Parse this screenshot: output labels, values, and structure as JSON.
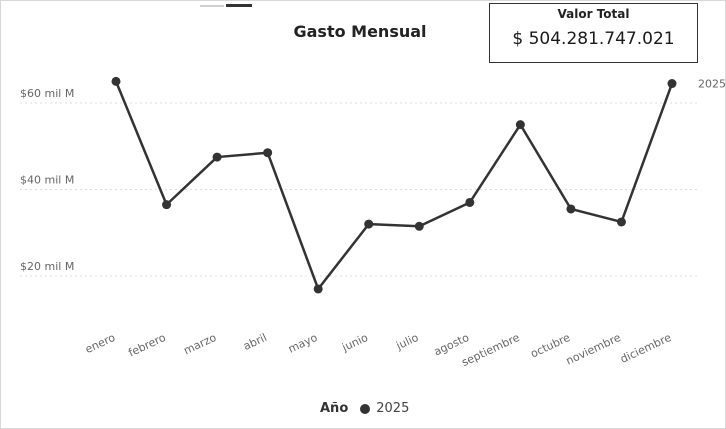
{
  "title": "Gasto Mensual",
  "card": {
    "title": "Valor Total",
    "value": "$ 504.281.747.021"
  },
  "legend": {
    "title": "Año",
    "entries": [
      "2025"
    ]
  },
  "colors": {
    "series": "#333333",
    "grid": "#dddddd",
    "axis_text": "#666666"
  },
  "chart_data": {
    "type": "line",
    "title": "Gasto Mensual",
    "xlabel": "",
    "ylabel": "",
    "categories": [
      "enero",
      "febrero",
      "marzo",
      "abril",
      "mayo",
      "junio",
      "julio",
      "agosto",
      "septiembre",
      "octubre",
      "noviembre",
      "diciembre"
    ],
    "series": [
      {
        "name": "2025",
        "values": [
          65000000000,
          36500000000,
          47500000000,
          48500000000,
          17000000000,
          32000000000,
          31500000000,
          37000000000,
          55000000000,
          35500000000,
          32500000000,
          64500000000
        ]
      }
    ],
    "y_ticks": [
      20000000000,
      40000000000,
      60000000000
    ],
    "y_tick_labels": [
      "$20 mil M",
      "$40 mil M",
      "$60 mil M"
    ],
    "ylim": [
      10000000000,
      70000000000
    ],
    "grid": true,
    "end_label": "2025",
    "legend_position": "bottom"
  }
}
